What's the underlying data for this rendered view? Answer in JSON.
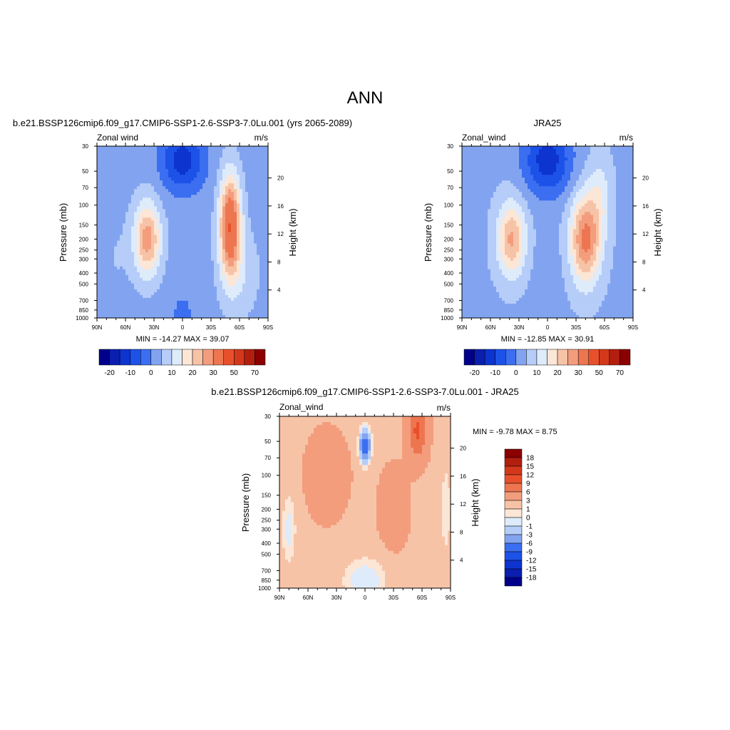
{
  "page_title": "ANN",
  "chart_data": [
    {
      "type": "heatmap",
      "title": "b.e21.BSSP126cmip6.f09_g17.CMIP6-SSP1-2.6-SSP3-7.0Lu.001 (yrs 2065-2089)",
      "left_label": "Zonal wind",
      "right_label": "m/s",
      "ylabel": "Pressure (mb)",
      "y2label": "Height (km)",
      "x_ticks": [
        "90N",
        "60N",
        "30N",
        "0",
        "30S",
        "60S",
        "90S"
      ],
      "y_ticks": [
        "30",
        "50",
        "70",
        "100",
        "150",
        "200",
        "250",
        "300",
        "400",
        "500",
        "700",
        "850",
        "1000"
      ],
      "y2_ticks": [
        "20",
        "16",
        "12",
        "8",
        "4"
      ],
      "stats": "MIN = -14.27  MAX =  39.07",
      "colorbar_labels": [
        "-20",
        "-10",
        "0",
        "10",
        "20",
        "30",
        "50",
        "70"
      ],
      "features": [
        {
          "lat": -52,
          "plev": 100,
          "value": 38
        },
        {
          "lat": 36,
          "plev": 200,
          "value": 26
        },
        {
          "lat": 0,
          "plev": 40,
          "value": -14
        },
        {
          "lat": 0,
          "plev": 900,
          "value": -6
        }
      ]
    },
    {
      "type": "heatmap",
      "title": "JRA25",
      "left_label": "Zonal_wind",
      "right_label": "m/s",
      "ylabel": "Pressure (mb)",
      "y2label": "Height (km)",
      "x_ticks": [
        "90N",
        "60N",
        "30N",
        "0",
        "30S",
        "60S",
        "90S"
      ],
      "y_ticks": [
        "30",
        "50",
        "70",
        "100",
        "150",
        "200",
        "250",
        "300",
        "400",
        "500",
        "700",
        "850",
        "1000"
      ],
      "y2_ticks": [
        "20",
        "16",
        "12",
        "8",
        "4"
      ],
      "stats": "MIN = -12.85  MAX =  30.91",
      "colorbar_labels": [
        "-20",
        "-10",
        "0",
        "10",
        "20",
        "30",
        "50",
        "70"
      ],
      "features": [
        {
          "lat": -40,
          "plev": 200,
          "value": 31
        },
        {
          "lat": 38,
          "plev": 200,
          "value": 24
        },
        {
          "lat": 0,
          "plev": 40,
          "value": -13
        }
      ]
    },
    {
      "type": "heatmap",
      "title": "b.e21.BSSP126cmip6.f09_g17.CMIP6-SSP1-2.6-SSP3-7.0Lu.001 - JRA25",
      "left_label": "Zonal_wind",
      "right_label": "m/s",
      "ylabel": "Pressure (mb)",
      "y2label": "Height (km)",
      "x_ticks": [
        "90N",
        "60N",
        "30N",
        "0",
        "30S",
        "60S",
        "90S"
      ],
      "y_ticks": [
        "30",
        "50",
        "70",
        "100",
        "150",
        "200",
        "250",
        "300",
        "400",
        "500",
        "700",
        "850",
        "1000"
      ],
      "y2_ticks": [
        "20",
        "16",
        "12",
        "8",
        "4"
      ],
      "stats": "MIN =  -9.78  MAX =   8.75",
      "colorbar_labels": [
        "18",
        "15",
        "12",
        "9",
        "6",
        "3",
        "1",
        "0",
        "-1",
        "-3",
        "-6",
        "-9",
        "-12",
        "-15",
        "-18"
      ],
      "features": [
        {
          "lat": 0,
          "plev": 55,
          "value": -9.8
        },
        {
          "lat": -55,
          "plev": 40,
          "value": 8.7
        }
      ]
    }
  ],
  "colors": {
    "wind_scale": [
      "#00008b",
      "#0a1fb0",
      "#0d34cf",
      "#1d52e8",
      "#3b6ef0",
      "#82a4f0",
      "#b5cdf8",
      "#deebfb",
      "#fce6d6",
      "#f7c3a7",
      "#f39d7d",
      "#ed7650",
      "#e8502c",
      "#d4381a",
      "#b31f0f",
      "#8b0000"
    ],
    "diff_scale": [
      "#8b0000",
      "#b31f0f",
      "#d4381a",
      "#e8502c",
      "#ed7650",
      "#f39d7d",
      "#f7c3a7",
      "#fce6d6",
      "#deebfb",
      "#b5cdf8",
      "#82a4f0",
      "#3b6ef0",
      "#1d52e8",
      "#0d34cf",
      "#0a1fb0",
      "#00008b"
    ]
  }
}
